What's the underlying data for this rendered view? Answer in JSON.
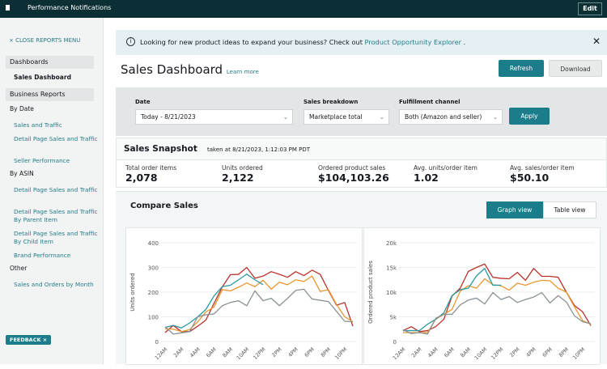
{
  "topbar": {
    "title": "Performance Notifications",
    "edit": "Edit"
  },
  "sidebar": {
    "close": "× CLOSE REPORTS MENU",
    "dashboards": "Dashboards",
    "sales_dashboard": "Sales Dashboard",
    "business_reports": "Business Reports",
    "by_date": "By Date",
    "by_date_items": [
      "Sales and Traffic",
      "Detail Page Sales and Traffic",
      "Seller Performance"
    ],
    "by_asin": "By ASIN",
    "by_asin_items": [
      "Detail Page Sales and Traffic",
      "Detail Page Sales and Traffic By Parent Item",
      "Detail Page Sales and Traffic By Child Item",
      "Brand Performance"
    ],
    "other": "Other",
    "other_items": [
      "Sales and Orders by Month"
    ],
    "feedback": "FEEDBACK ×"
  },
  "banner": {
    "text": "Looking for new product ideas to expand your business? Check out ",
    "link": "Product Opportunity Explorer",
    "end": " .",
    "info_icon": "i",
    "close_icon": "✕"
  },
  "header": {
    "title": "Sales Dashboard",
    "learn_more": "Learn more",
    "refresh": "Refresh",
    "download": "Download"
  },
  "filters": {
    "date_label": "Date",
    "date_value": "Today - 8/21/2023",
    "breakdown_label": "Sales breakdown",
    "breakdown_value": "Marketplace total",
    "channel_label": "Fulfillment channel",
    "channel_value": "Both (Amazon and seller)",
    "apply": "Apply"
  },
  "snapshot": {
    "title": "Sales Snapshot",
    "taken": "taken at 8/21/2023, 1:12:03 PM PDT",
    "metrics": [
      {
        "label": "Total order items",
        "value": "2,078"
      },
      {
        "label": "Units ordered",
        "value": "2,122"
      },
      {
        "label": "Ordered product sales",
        "value": "$104,103.26"
      },
      {
        "label": "Avg. units/order item",
        "value": "1.02"
      },
      {
        "label": "Avg. sales/order item",
        "value": "$50.10"
      }
    ]
  },
  "compare": {
    "title": "Compare Sales",
    "graph_view": "Graph view",
    "table_view": "Table view"
  },
  "chart_data": [
    {
      "type": "line",
      "ylabel": "Units ordered",
      "ylim": [
        0,
        400
      ],
      "yticks": [
        "0",
        "100",
        "200",
        "300",
        "400"
      ],
      "grid": true,
      "xticks": [
        "12AM",
        "2AM",
        "4AM",
        "6AM",
        "8AM",
        "10AM",
        "12PM",
        "2PM",
        "4PM",
        "6PM",
        "8PM",
        "10PM"
      ],
      "series": [
        {
          "color": "#b8322a",
          "values": [
            36,
            65,
            40,
            40,
            62,
            87,
            155,
            221,
            271,
            272,
            300,
            256,
            265,
            283,
            272,
            260,
            283,
            267,
            289,
            272,
            207,
            147,
            158,
            62
          ]
        },
        {
          "color": "#e8962e",
          "values": [
            51,
            50,
            40,
            48,
            80,
            120,
            140,
            210,
            205,
            220,
            237,
            222,
            248,
            212,
            240,
            230,
            250,
            243,
            265,
            203,
            210,
            150,
            100,
            80
          ]
        },
        {
          "color": "#2a9aa0",
          "values": [
            57,
            65,
            55,
            75,
            100,
            130,
            185,
            222,
            228,
            250,
            273,
            250,
            230
          ]
        },
        {
          "color": "#8a9196",
          "values": [
            60,
            30,
            35,
            40,
            100,
            108,
            112,
            145,
            158,
            165,
            145,
            205,
            165,
            175,
            145,
            175,
            207,
            212,
            172,
            167,
            162,
            122,
            82,
            80
          ]
        }
      ]
    },
    {
      "type": "line",
      "ylabel": "Ordered product sales",
      "ylim": [
        0,
        20000
      ],
      "yticks": [
        "0",
        "5k",
        "10k",
        "15k",
        "20k"
      ],
      "grid": true,
      "xticks": [
        "12AM",
        "2AM",
        "4AM",
        "6AM",
        "8AM",
        "10AM",
        "12PM",
        "2PM",
        "4PM",
        "6PM",
        "8PM",
        "10PM"
      ],
      "series": [
        {
          "color": "#b8322a",
          "values": [
            2200,
            3000,
            2000,
            2200,
            3000,
            4500,
            9200,
            10800,
            14200,
            15000,
            15700,
            13000,
            12800,
            12700,
            14000,
            12400,
            14800,
            13200,
            13200,
            13000,
            10000,
            7300,
            6000,
            3200
          ]
        },
        {
          "color": "#e8962e",
          "values": [
            1800,
            1800,
            1800,
            1800,
            4500,
            5500,
            6500,
            10200,
            11300,
            10800,
            12700,
            11500,
            11300,
            10400,
            11800,
            11400,
            12000,
            12400,
            12300,
            10800,
            10000,
            7000,
            4200,
            3500
          ]
        },
        {
          "color": "#2a9aa0",
          "values": [
            2200,
            2200,
            2200,
            3500,
            4500,
            5800,
            9300,
            10500,
            10800,
            13300,
            14800,
            11400,
            11400
          ]
        },
        {
          "color": "#8a9196",
          "values": [
            2400,
            1600,
            1800,
            1500,
            4700,
            5500,
            5500,
            7400,
            8400,
            8800,
            7600,
            9900,
            8500,
            9100,
            7900,
            8500,
            9000,
            9900,
            7800,
            9300,
            8000,
            5200,
            4000,
            3600
          ]
        }
      ]
    }
  ]
}
